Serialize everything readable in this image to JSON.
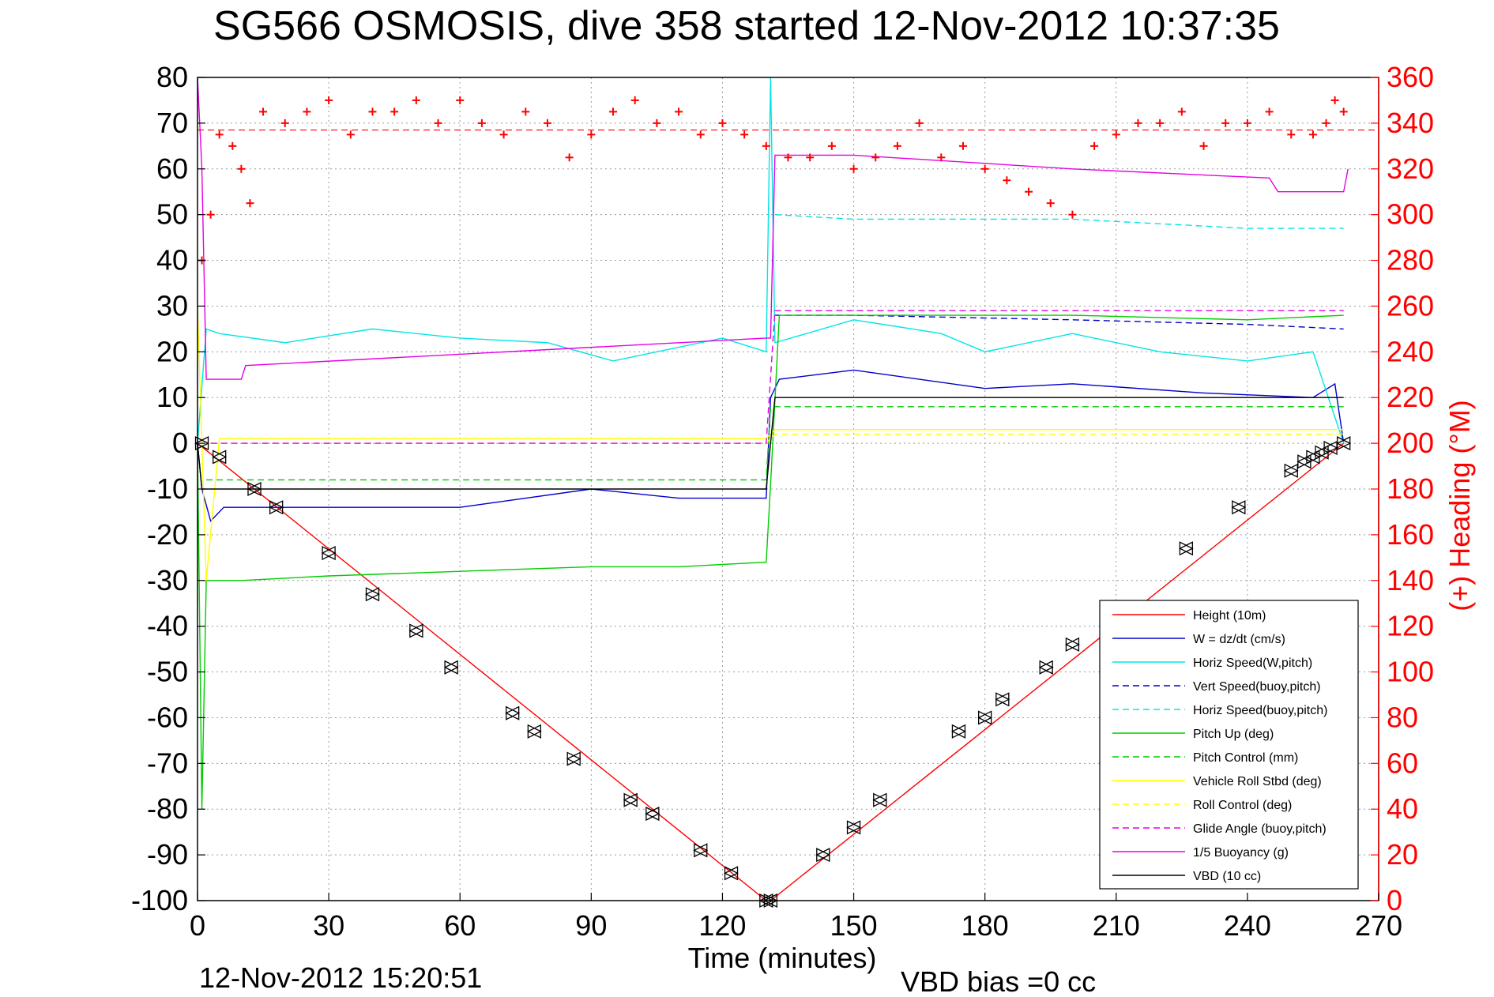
{
  "chart_data": {
    "type": "line",
    "title": "SG566 OSMOSIS, dive 358 started 12-Nov-2012 10:37:35",
    "xlabel": "Time (minutes)",
    "ylabel": "",
    "ylabel_right": "(+) Heading (°M)",
    "xlim": [
      0,
      270
    ],
    "ylim": [
      -100,
      80
    ],
    "ylim_right": [
      0,
      360
    ],
    "x_ticks": [
      "0",
      "30",
      "60",
      "90",
      "120",
      "150",
      "180",
      "210",
      "240",
      "270"
    ],
    "y_ticks": [
      "80",
      "70",
      "60",
      "50",
      "40",
      "30",
      "20",
      "10",
      "0",
      "-10",
      "-20",
      "-30",
      "-40",
      "-50",
      "-60",
      "-70",
      "-80",
      "-90",
      "-100"
    ],
    "y_ticks_right": [
      "360",
      "340",
      "320",
      "300",
      "280",
      "260",
      "240",
      "220",
      "200",
      "180",
      "160",
      "140",
      "120",
      "100",
      "80",
      "60",
      "40",
      "20",
      "0"
    ],
    "grid": true,
    "legend_position": "lower-right",
    "footer_date": "12-Nov-2012 15:20:51",
    "footer_vbd": "VBD bias =0 cc",
    "series": [
      {
        "name": "Height (10m)",
        "color": "#ff0000",
        "style": "solid",
        "x": [
          0,
          130,
          131,
          262
        ],
        "y": [
          0,
          -100,
          -100,
          0
        ]
      },
      {
        "name": "W = dz/dt (cm/s)",
        "color": "#0000cc",
        "style": "solid",
        "x": [
          0,
          1,
          3,
          6,
          10,
          20,
          40,
          60,
          90,
          110,
          130,
          131,
          133,
          150,
          180,
          200,
          230,
          255,
          260,
          262
        ],
        "y": [
          0,
          -10,
          -17,
          -14,
          -14,
          -14,
          -14,
          -14,
          -10,
          -12,
          -12,
          10,
          14,
          16,
          12,
          13,
          11,
          10,
          13,
          0
        ]
      },
      {
        "name": "Horiz Speed(W,pitch)",
        "color": "#00e5e5",
        "style": "solid",
        "x": [
          0,
          2,
          5,
          20,
          40,
          60,
          80,
          95,
          105,
          120,
          130,
          131,
          132,
          150,
          170,
          180,
          200,
          220,
          240,
          255,
          262
        ],
        "y": [
          0,
          25,
          24,
          22,
          25,
          23,
          22,
          18,
          20,
          23,
          20,
          80,
          22,
          27,
          24,
          20,
          24,
          20,
          18,
          20,
          0
        ]
      },
      {
        "name": "Vert Speed(buoy,pitch)",
        "color": "#0000cc",
        "style": "dashed",
        "x": [
          132,
          150,
          200,
          240,
          262
        ],
        "y": [
          28,
          28,
          27,
          26,
          25
        ]
      },
      {
        "name": "Horiz Speed(buoy,pitch)",
        "color": "#00e5e5",
        "style": "dashed",
        "x": [
          132,
          150,
          200,
          240,
          262
        ],
        "y": [
          50,
          49,
          49,
          47,
          47
        ]
      },
      {
        "name": "Pitch Up (deg)",
        "color": "#00cc00",
        "style": "solid",
        "x": [
          0,
          1,
          2,
          4,
          10,
          30,
          60,
          90,
          110,
          130,
          131,
          133,
          150,
          200,
          240,
          262
        ],
        "y": [
          0,
          -80,
          -30,
          -30,
          -30,
          -29,
          -28,
          -27,
          -27,
          -26,
          -9,
          28,
          28,
          28,
          27,
          28
        ]
      },
      {
        "name": "Pitch Control (mm)",
        "color": "#00cc00",
        "style": "dashed",
        "x": [
          2,
          130,
          131,
          262
        ],
        "y": [
          -8,
          -8,
          8,
          8
        ]
      },
      {
        "name": "Vehicle Roll Stbd (deg)",
        "color": "#ffff00",
        "style": "solid",
        "x": [
          0,
          2,
          5,
          130,
          132,
          262
        ],
        "y": [
          30,
          -30,
          1,
          1,
          3,
          3
        ]
      },
      {
        "name": "Roll Control (deg)",
        "color": "#ffff00",
        "style": "dashed",
        "x": [
          3,
          130,
          132,
          262
        ],
        "y": [
          0,
          0,
          2,
          2
        ]
      },
      {
        "name": "Glide Angle (buoy,pitch)",
        "color": "#e500e5",
        "style": "dashed",
        "x": [
          3,
          130,
          132,
          200,
          262
        ],
        "y": [
          0,
          0,
          29,
          29,
          29
        ]
      },
      {
        "name": "1/5 Buoyancy (g)",
        "color": "#e500e5",
        "style": "solid",
        "x": [
          0,
          1,
          2,
          10,
          11,
          130,
          131,
          132,
          150,
          200,
          245,
          247,
          262,
          263
        ],
        "y": [
          80,
          60,
          14,
          14,
          17,
          23,
          23,
          63,
          63,
          60,
          58,
          55,
          55,
          60
        ]
      },
      {
        "name": "VBD (10 cc)",
        "color": "#000000",
        "style": "solid",
        "x": [
          0,
          1,
          2,
          130,
          131,
          132,
          262
        ],
        "y": [
          0,
          -10,
          -10,
          -10,
          0,
          10,
          10
        ]
      }
    ],
    "heading_series": {
      "name": "Heading",
      "color": "#ff0000",
      "marker": "+",
      "mean": 337,
      "x": [
        1,
        3,
        5,
        8,
        10,
        12,
        15,
        20,
        25,
        30,
        35,
        40,
        45,
        50,
        55,
        60,
        65,
        70,
        75,
        80,
        85,
        90,
        95,
        100,
        105,
        110,
        115,
        120,
        125,
        130,
        135,
        140,
        145,
        150,
        155,
        160,
        165,
        170,
        175,
        180,
        185,
        190,
        195,
        200,
        205,
        210,
        215,
        220,
        225,
        230,
        235,
        240,
        245,
        250,
        255,
        258,
        260,
        262
      ],
      "y": [
        280,
        300,
        335,
        330,
        320,
        305,
        345,
        340,
        345,
        350,
        335,
        345,
        345,
        350,
        340,
        350,
        340,
        335,
        345,
        340,
        325,
        335,
        345,
        350,
        340,
        345,
        335,
        340,
        335,
        330,
        325,
        325,
        330,
        320,
        325,
        330,
        340,
        325,
        330,
        320,
        315,
        310,
        305,
        300,
        330,
        335,
        340,
        340,
        345,
        330,
        340,
        340,
        345,
        335,
        335,
        340,
        350,
        345
      ]
    },
    "dive_markers": {
      "x": [
        1,
        5,
        13,
        18,
        30,
        40,
        50,
        58,
        72,
        77,
        86,
        99,
        104,
        115,
        122,
        130,
        131,
        143,
        150,
        156,
        174,
        180,
        184,
        194,
        200,
        226,
        238,
        250,
        253,
        255,
        257,
        259,
        262
      ],
      "y": [
        0,
        -3,
        -10,
        -14,
        -24,
        -33,
        -41,
        -49,
        -59,
        -63,
        -69,
        -78,
        -81,
        -89,
        -94,
        -100,
        -100,
        -90,
        -84,
        -78,
        -63,
        -60,
        -56,
        -49,
        -44,
        -23,
        -14,
        -6,
        -4,
        -3,
        -2,
        -1,
        0
      ]
    }
  }
}
